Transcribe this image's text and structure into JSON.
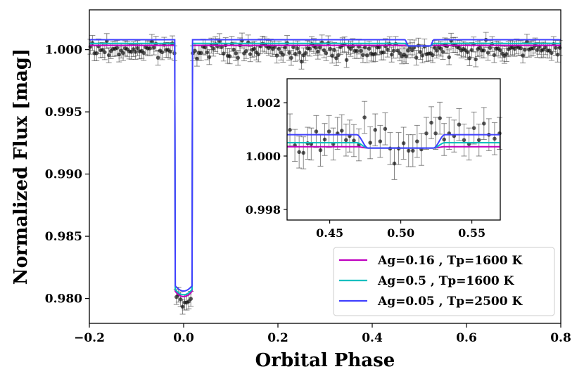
{
  "chart_data": {
    "type": "scatter",
    "title": "",
    "xlabel": "Orbital Phase",
    "ylabel": "Normalized Flux [mag]",
    "xlim": [
      -0.2,
      0.8
    ],
    "ylim": [
      0.978,
      1.0032
    ],
    "xticks": [
      "−0.2",
      "0.0",
      "0.2",
      "0.4",
      "0.6",
      "0.8"
    ],
    "xtick_values": [
      -0.2,
      0.0,
      0.2,
      0.4,
      0.6,
      0.8
    ],
    "yticks": [
      "0.980",
      "0.985",
      "0.990",
      "0.995",
      "1.000"
    ],
    "ytick_values": [
      0.98,
      0.985,
      0.99,
      0.995,
      1.0
    ],
    "grid": false,
    "legend_placement": "lower-right",
    "transit": {
      "center": 0.0,
      "depth": 0.0202,
      "half_width": 0.03,
      "ingress": 0.012
    },
    "observations": {
      "color": "#000000",
      "phase_range": [
        -0.2,
        0.8
      ],
      "count": 230,
      "baseline": 1.0,
      "scatter": 0.00045,
      "errorbar": 0.0006
    },
    "series": [
      {
        "name": "Ag=0.16 , Tp=1600 K",
        "color": "#bf00bf",
        "baseline": 1.00035,
        "eclipse_drop": 5e-05
      },
      {
        "name": "Ag=0.5 , Tp=1600 K",
        "color": "#00bfbf",
        "baseline": 1.0005,
        "eclipse_drop": 0.0002
      },
      {
        "name": "Ag=0.05 , Tp=2500 K",
        "color": "#4040ff",
        "baseline": 1.0008,
        "eclipse_drop": 0.0005
      }
    ],
    "inset": {
      "xlim": [
        0.42,
        0.57
      ],
      "ylim": [
        0.9976,
        1.0029
      ],
      "xticks": [
        "0.45",
        "0.50",
        "0.55"
      ],
      "xtick_values": [
        0.45,
        0.5,
        0.55
      ],
      "yticks": [
        "0.998",
        "1.000",
        "1.002"
      ],
      "ytick_values": [
        0.998,
        1.0,
        1.002
      ],
      "eclipse_center": 0.5,
      "eclipse_half_width": 0.027,
      "points": [
        {
          "x": 0.422,
          "y": 1.00098
        },
        {
          "x": 0.4255,
          "y": 1.0004
        },
        {
          "x": 0.4285,
          "y": 1.00015
        },
        {
          "x": 0.4315,
          "y": 1.00012
        },
        {
          "x": 0.4345,
          "y": 1.00048
        },
        {
          "x": 0.437,
          "y": 1.00045
        },
        {
          "x": 0.4405,
          "y": 1.00092
        },
        {
          "x": 0.4435,
          "y": 1.00022
        },
        {
          "x": 0.4465,
          "y": 1.00062
        },
        {
          "x": 0.4495,
          "y": 1.00092
        },
        {
          "x": 0.4525,
          "y": 1.00045
        },
        {
          "x": 0.4555,
          "y": 1.00085
        },
        {
          "x": 0.4585,
          "y": 1.00095
        },
        {
          "x": 0.4615,
          "y": 1.0006
        },
        {
          "x": 0.464,
          "y": 1.00075
        },
        {
          "x": 0.467,
          "y": 1.00058
        },
        {
          "x": 0.4705,
          "y": 1.00042
        },
        {
          "x": 0.4745,
          "y": 1.00145
        },
        {
          "x": 0.4785,
          "y": 1.0005
        },
        {
          "x": 0.482,
          "y": 1.00098
        },
        {
          "x": 0.4855,
          "y": 1.00055
        },
        {
          "x": 0.489,
          "y": 1.00102
        },
        {
          "x": 0.4925,
          "y": 1.00028
        },
        {
          "x": 0.4955,
          "y": 0.99972
        },
        {
          "x": 0.4985,
          "y": 1.00028
        },
        {
          "x": 0.502,
          "y": 1.00048
        },
        {
          "x": 0.5055,
          "y": 1.0002
        },
        {
          "x": 0.5085,
          "y": 1.0002
        },
        {
          "x": 0.5115,
          "y": 1.00055
        },
        {
          "x": 0.5145,
          "y": 1.00025
        },
        {
          "x": 0.518,
          "y": 1.00085
        },
        {
          "x": 0.5215,
          "y": 1.00125
        },
        {
          "x": 0.5245,
          "y": 1.00085
        },
        {
          "x": 0.5275,
          "y": 1.00142
        },
        {
          "x": 0.5305,
          "y": 1.00062
        },
        {
          "x": 0.534,
          "y": 1.00085
        },
        {
          "x": 0.5375,
          "y": 1.00075
        },
        {
          "x": 0.541,
          "y": 1.00118
        },
        {
          "x": 0.5445,
          "y": 1.0006
        },
        {
          "x": 0.548,
          "y": 1.00045
        },
        {
          "x": 0.5515,
          "y": 1.00105
        },
        {
          "x": 0.555,
          "y": 1.0006
        },
        {
          "x": 0.5585,
          "y": 1.00122
        },
        {
          "x": 0.562,
          "y": 1.0008
        },
        {
          "x": 0.566,
          "y": 1.00065
        },
        {
          "x": 0.5695,
          "y": 1.00085
        }
      ]
    }
  }
}
